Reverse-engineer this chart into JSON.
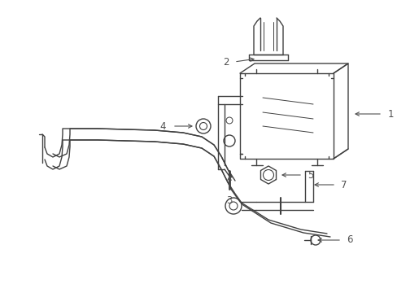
{
  "bg_color": "#ffffff",
  "line_color": "#404040",
  "label_color": "#505050",
  "figsize": [
    4.89,
    3.6
  ],
  "dpi": 100,
  "xlim": [
    0,
    489
  ],
  "ylim": [
    0,
    360
  ]
}
